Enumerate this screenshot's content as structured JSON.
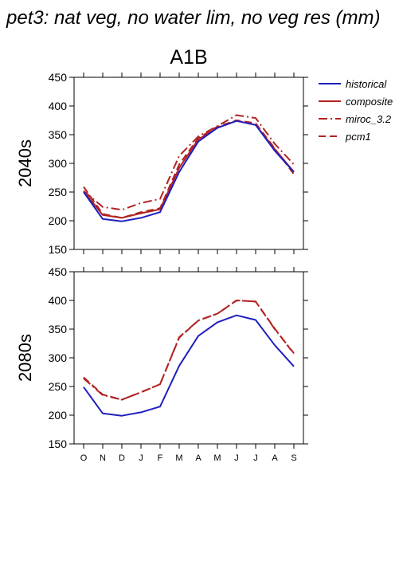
{
  "figure": {
    "title": "pet3: nat veg, no water lim, no veg res (mm)",
    "scenario": "A1B"
  },
  "legend": {
    "entries": [
      {
        "label": "historical",
        "color": "#1f1fbf",
        "dash": "solid"
      },
      {
        "label": "composite",
        "color": "#b22222",
        "dash": "solid"
      },
      {
        "label": "miroc_3.2",
        "color": "#b22222",
        "dash": "dashdot"
      },
      {
        "label": "pcm1",
        "color": "#b22222",
        "dash": "dashed"
      }
    ]
  },
  "chart_data": [
    {
      "type": "line",
      "panel_label": "2040s",
      "x": [
        "O",
        "N",
        "D",
        "J",
        "F",
        "M",
        "A",
        "M",
        "J",
        "J",
        "A",
        "S"
      ],
      "ylim": [
        150,
        450
      ],
      "yticks": [
        150,
        200,
        250,
        300,
        350,
        400,
        450
      ],
      "series": [
        {
          "name": "historical",
          "color": "#1f1fbf",
          "dash": "solid",
          "values": [
            250,
            203,
            199,
            205,
            215,
            285,
            338,
            362,
            374,
            367,
            322,
            285
          ]
        },
        {
          "name": "composite",
          "color": "#b22222",
          "dash": "solid",
          "values": [
            252,
            210,
            205,
            213,
            220,
            292,
            342,
            362,
            374,
            367,
            325,
            285
          ]
        },
        {
          "name": "miroc_3.2",
          "color": "#b22222",
          "dash": "dashdot",
          "values": [
            252,
            224,
            219,
            231,
            238,
            313,
            347,
            365,
            384,
            379,
            334,
            298
          ]
        },
        {
          "name": "pcm1",
          "color": "#b22222",
          "dash": "dashed",
          "values": [
            259,
            212,
            205,
            215,
            222,
            298,
            344,
            364,
            375,
            370,
            326,
            281
          ]
        }
      ]
    },
    {
      "type": "line",
      "panel_label": "2080s",
      "x": [
        "O",
        "N",
        "D",
        "J",
        "F",
        "M",
        "A",
        "M",
        "J",
        "J",
        "A",
        "S"
      ],
      "ylim": [
        150,
        450
      ],
      "yticks": [
        150,
        200,
        250,
        300,
        350,
        400,
        450
      ],
      "series": [
        {
          "name": "historical",
          "color": "#1f1fbf",
          "dash": "solid",
          "values": [
            249,
            203,
            199,
            205,
            215,
            286,
            338,
            362,
            374,
            366,
            322,
            285
          ]
        },
        {
          "name": "miroc_3.2",
          "color": "#b22222",
          "dash": "dashdot",
          "values": [
            264,
            235,
            227,
            240,
            254,
            336,
            365,
            377,
            400,
            398,
            350,
            308
          ]
        },
        {
          "name": "pcm1",
          "color": "#b22222",
          "dash": "dashed",
          "values": [
            266,
            236,
            227,
            240,
            254,
            335,
            365,
            377,
            400,
            398,
            351,
            307
          ]
        }
      ]
    }
  ]
}
